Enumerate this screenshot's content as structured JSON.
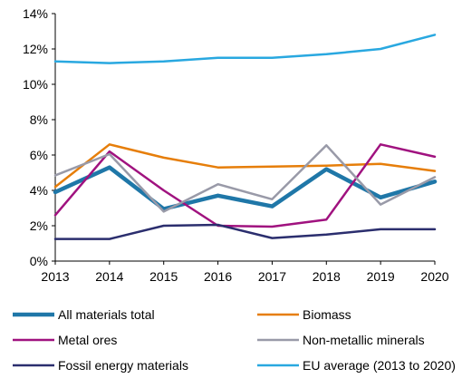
{
  "chart_data": {
    "type": "line",
    "title": "",
    "xlabel": "",
    "ylabel": "",
    "x": [
      "2013",
      "2014",
      "2015",
      "2016",
      "2017",
      "2018",
      "2019",
      "2020"
    ],
    "ylim": [
      0,
      14
    ],
    "y_ticks": [
      "0%",
      "2%",
      "4%",
      "6%",
      "8%",
      "10%",
      "12%",
      "14%"
    ],
    "grid": false,
    "legend_position": "bottom",
    "series": [
      {
        "name": "All materials total",
        "color": "#1f77a8",
        "values": [
          3.9,
          5.3,
          2.95,
          3.7,
          3.1,
          5.2,
          3.6,
          4.5
        ]
      },
      {
        "name": "Biomass",
        "color": "#e67e0a",
        "values": [
          4.2,
          6.6,
          5.85,
          5.3,
          5.35,
          5.4,
          5.5,
          5.1
        ]
      },
      {
        "name": "Metal ores",
        "color": "#a0127f",
        "values": [
          2.6,
          6.2,
          4.0,
          2.0,
          1.95,
          2.35,
          6.6,
          5.9
        ]
      },
      {
        "name": "Non-metallic minerals",
        "color": "#999aa8",
        "values": [
          4.85,
          6.05,
          2.8,
          4.35,
          3.5,
          6.55,
          3.2,
          4.75
        ]
      },
      {
        "name": "Fossil energy materials",
        "color": "#2b2e6e",
        "values": [
          1.25,
          1.25,
          2.0,
          2.05,
          1.3,
          1.5,
          1.8,
          1.8
        ]
      },
      {
        "name": "EU average (2013 to 2020)",
        "color": "#29a8e0",
        "values": [
          11.3,
          11.2,
          11.3,
          11.5,
          11.5,
          11.7,
          12.0,
          12.8
        ]
      }
    ]
  }
}
